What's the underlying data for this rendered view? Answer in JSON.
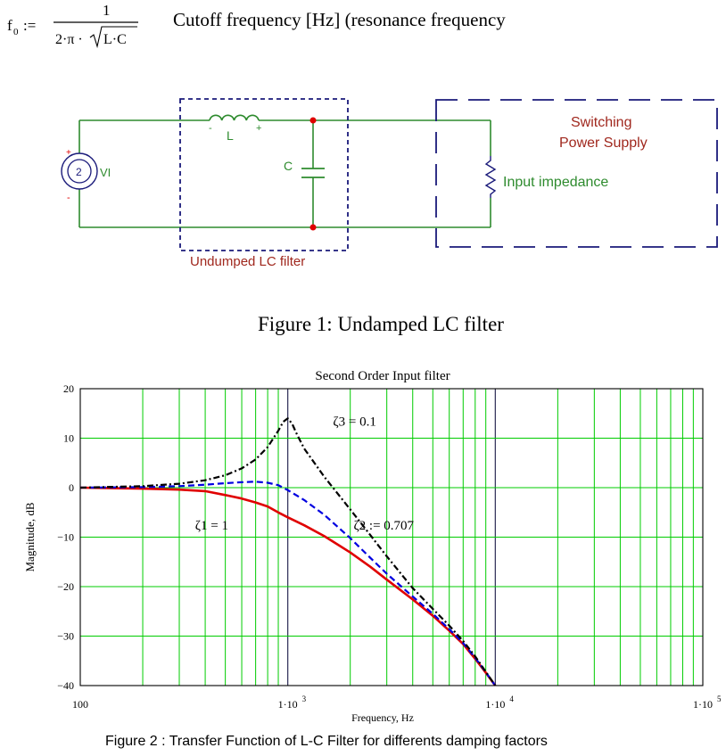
{
  "formula": {
    "lhs": "f",
    "lhs_sub": "0",
    "assign": ":=",
    "numerator": "1",
    "denominator": "2·π ·",
    "radicand": "L·C",
    "description": "Cutoff frequency [Hz]  (resonance frequency"
  },
  "circuit": {
    "source_label": "VI",
    "source_symbol": "2",
    "source_plus": "+",
    "source_minus": "-",
    "inductor_label": "L",
    "inductor_minus": "-",
    "inductor_plus": "+",
    "capacitor_label": "C",
    "filter_box_label": "Undumped LC filter",
    "supply_label_line1": "Switching",
    "supply_label_line2": "Power Supply",
    "impedance_label": "Input impedance",
    "colors": {
      "wire": "#2e8b2e",
      "box": "#1a1a7a",
      "red_text": "#a0281e",
      "node": "#e00000"
    }
  },
  "figure1_caption": "Figure 1: Undamped LC filter",
  "figure2_caption": "Figure 2 : Transfer Function of L-C Filter for differents damping factors",
  "chart_data": {
    "type": "line",
    "title": "Second Order Input filter",
    "xlabel": "Frequency, Hz",
    "ylabel": "Magnitude, dB",
    "x_scale": "log",
    "xlim": [
      100,
      100000
    ],
    "ylim": [
      -40,
      20
    ],
    "grid": true,
    "grid_color": "#00cc00",
    "x_ticks": [
      {
        "value": 100,
        "base": "100",
        "exp": ""
      },
      {
        "value": 1000,
        "base": "1·10",
        "exp": "3"
      },
      {
        "value": 10000,
        "base": "1·10",
        "exp": "4"
      },
      {
        "value": 100000,
        "base": "1·10",
        "exp": "5"
      }
    ],
    "y_ticks": [
      20,
      10,
      0,
      -10,
      -20,
      -30,
      -40
    ],
    "y_tick_labels": [
      "20",
      "10",
      "0",
      "−10",
      "−20",
      "−30",
      "−40"
    ],
    "series": [
      {
        "name": "ζ1 = 1",
        "color": "#e00000",
        "dash": "solid",
        "x": [
          100,
          200,
          300,
          400,
          500,
          600,
          700,
          800,
          900,
          1000,
          1200,
          1500,
          2000,
          2500,
          3000,
          4000,
          5000,
          6000,
          7000,
          8000,
          9000,
          10000
        ],
        "values": [
          0,
          -0.2,
          -0.4,
          -0.7,
          -1.5,
          -2.2,
          -3.0,
          -3.8,
          -5.0,
          -6.0,
          -7.6,
          -9.8,
          -13.1,
          -16.0,
          -18.6,
          -22.6,
          -25.9,
          -28.9,
          -31.6,
          -34.6,
          -37.4,
          -40
        ]
      },
      {
        "name": "ζ2 := 0.707",
        "color": "#0000e0",
        "dash": "dashed",
        "x": [
          100,
          200,
          300,
          400,
          500,
          600,
          700,
          800,
          900,
          1000,
          1200,
          1500,
          2000,
          2500,
          3000,
          4000,
          5000,
          6000,
          7000,
          8000,
          9000,
          10000
        ],
        "values": [
          0,
          0.1,
          0.3,
          0.6,
          0.9,
          1.1,
          1.2,
          1.0,
          0.5,
          -0.5,
          -2.5,
          -5.5,
          -10.2,
          -14.2,
          -17.4,
          -22.0,
          -25.5,
          -28.6,
          -31.4,
          -34.4,
          -37.3,
          -40
        ]
      },
      {
        "name": "ζ3 = 0.1",
        "color": "#000000",
        "dash": "dashdot",
        "x": [
          100,
          200,
          300,
          400,
          500,
          600,
          700,
          800,
          900,
          950,
          1000,
          1050,
          1100,
          1200,
          1500,
          2000,
          2500,
          3000,
          4000,
          5000,
          6000,
          7000,
          8000,
          9000,
          10000
        ],
        "values": [
          0,
          0.3,
          0.8,
          1.5,
          2.5,
          3.9,
          5.7,
          8.2,
          11.5,
          13.3,
          14.0,
          12.9,
          11.0,
          7.9,
          2.2,
          -4.4,
          -9.6,
          -13.9,
          -20.3,
          -24.5,
          -27.9,
          -31.0,
          -34.1,
          -37.2,
          -40
        ]
      }
    ],
    "annotations": [
      {
        "text": "ζ3 = 0.1",
        "x": 2100,
        "y": 12.5
      },
      {
        "text": "ζ1 = 1",
        "x": 430,
        "y": -8.5
      },
      {
        "text": "ζ2 := 0.707",
        "x": 2900,
        "y": -8.5
      }
    ]
  }
}
